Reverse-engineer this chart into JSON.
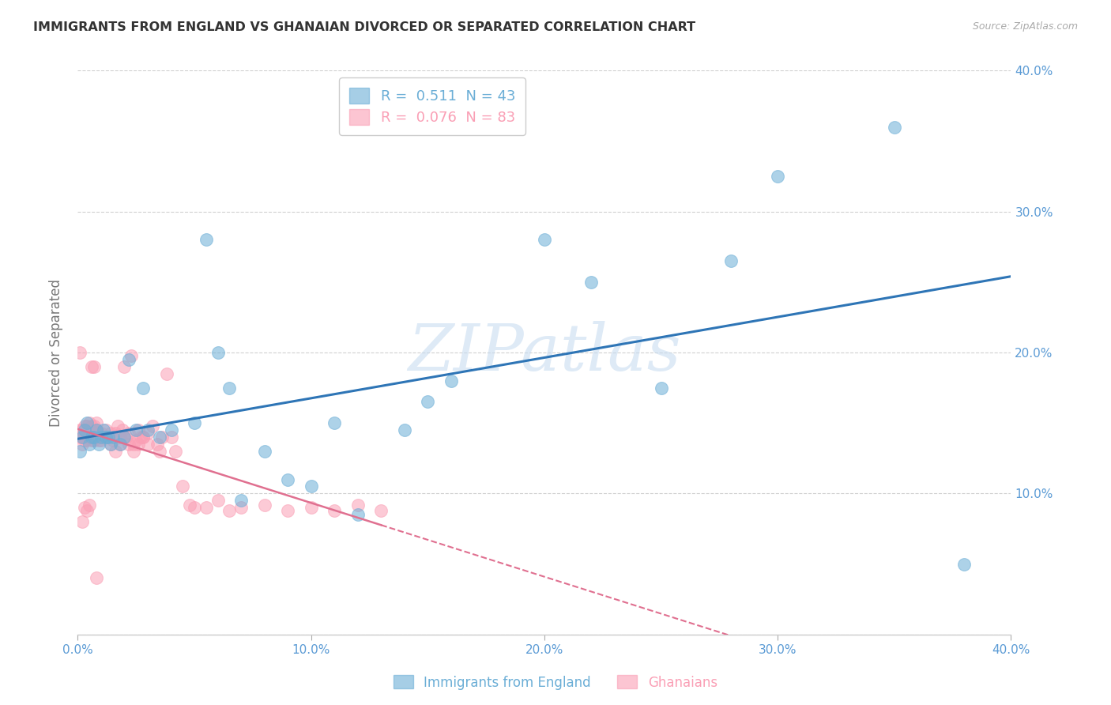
{
  "title": "IMMIGRANTS FROM ENGLAND VS GHANAIAN DIVORCED OR SEPARATED CORRELATION CHART",
  "source": "Source: ZipAtlas.com",
  "ylabel": "Divorced or Separated",
  "xlim": [
    0.0,
    0.4
  ],
  "ylim": [
    0.0,
    0.4
  ],
  "xticks": [
    0.0,
    0.1,
    0.2,
    0.3,
    0.4
  ],
  "yticks": [
    0.0,
    0.1,
    0.2,
    0.3,
    0.4
  ],
  "xtick_labels": [
    "0.0%",
    "10.0%",
    "20.0%",
    "30.0%",
    "40.0%"
  ],
  "right_ytick_labels": [
    "",
    "10.0%",
    "20.0%",
    "30.0%",
    "40.0%"
  ],
  "series1_color": "#6baed6",
  "series2_color": "#fa9fb5",
  "series1_label": "Immigrants from England",
  "series2_label": "Ghanaians",
  "R1": 0.511,
  "N1": 43,
  "R2": 0.076,
  "N2": 83,
  "watermark": "ZIPatlas",
  "background_color": "#ffffff",
  "grid_color": "#d0d0d0",
  "axis_tick_color": "#5b9bd5",
  "trend1_color": "#2e75b6",
  "trend2_color": "#e07090",
  "s1_x": [
    0.001,
    0.002,
    0.003,
    0.004,
    0.005,
    0.006,
    0.007,
    0.008,
    0.009,
    0.01,
    0.011,
    0.012,
    0.013,
    0.014,
    0.015,
    0.018,
    0.02,
    0.022,
    0.025,
    0.028,
    0.03,
    0.035,
    0.04,
    0.05,
    0.055,
    0.06,
    0.065,
    0.07,
    0.08,
    0.09,
    0.1,
    0.11,
    0.12,
    0.14,
    0.15,
    0.16,
    0.2,
    0.22,
    0.25,
    0.28,
    0.3,
    0.35,
    0.38
  ],
  "s1_y": [
    0.13,
    0.14,
    0.145,
    0.15,
    0.135,
    0.14,
    0.14,
    0.145,
    0.135,
    0.14,
    0.145,
    0.14,
    0.14,
    0.135,
    0.14,
    0.135,
    0.14,
    0.195,
    0.145,
    0.175,
    0.145,
    0.14,
    0.145,
    0.15,
    0.28,
    0.2,
    0.175,
    0.095,
    0.13,
    0.11,
    0.105,
    0.15,
    0.085,
    0.145,
    0.165,
    0.18,
    0.28,
    0.25,
    0.175,
    0.265,
    0.325,
    0.36,
    0.05
  ],
  "s2_x": [
    0.001,
    0.001,
    0.001,
    0.002,
    0.002,
    0.002,
    0.003,
    0.003,
    0.003,
    0.004,
    0.004,
    0.004,
    0.005,
    0.005,
    0.005,
    0.006,
    0.006,
    0.006,
    0.007,
    0.007,
    0.007,
    0.008,
    0.008,
    0.008,
    0.009,
    0.009,
    0.01,
    0.01,
    0.011,
    0.012,
    0.013,
    0.014,
    0.015,
    0.016,
    0.017,
    0.018,
    0.019,
    0.02,
    0.021,
    0.022,
    0.023,
    0.024,
    0.025,
    0.026,
    0.027,
    0.028,
    0.03,
    0.032,
    0.034,
    0.036,
    0.038,
    0.04,
    0.042,
    0.045,
    0.048,
    0.05,
    0.055,
    0.06,
    0.065,
    0.07,
    0.08,
    0.09,
    0.1,
    0.11,
    0.12,
    0.13,
    0.014,
    0.016,
    0.018,
    0.02,
    0.022,
    0.024,
    0.026,
    0.028,
    0.03,
    0.035,
    0.002,
    0.003,
    0.004,
    0.005,
    0.006,
    0.007,
    0.008
  ],
  "s2_y": [
    0.14,
    0.145,
    0.2,
    0.135,
    0.14,
    0.145,
    0.138,
    0.143,
    0.148,
    0.138,
    0.143,
    0.148,
    0.14,
    0.145,
    0.15,
    0.138,
    0.143,
    0.148,
    0.138,
    0.143,
    0.148,
    0.14,
    0.145,
    0.15,
    0.138,
    0.143,
    0.138,
    0.143,
    0.14,
    0.145,
    0.14,
    0.143,
    0.138,
    0.143,
    0.148,
    0.14,
    0.145,
    0.19,
    0.14,
    0.143,
    0.198,
    0.135,
    0.138,
    0.145,
    0.14,
    0.14,
    0.143,
    0.148,
    0.135,
    0.14,
    0.185,
    0.14,
    0.13,
    0.105,
    0.092,
    0.09,
    0.09,
    0.095,
    0.088,
    0.09,
    0.092,
    0.088,
    0.09,
    0.088,
    0.092,
    0.088,
    0.135,
    0.13,
    0.135,
    0.14,
    0.135,
    0.13,
    0.135,
    0.14,
    0.135,
    0.13,
    0.08,
    0.09,
    0.088,
    0.092,
    0.19,
    0.19,
    0.04
  ]
}
